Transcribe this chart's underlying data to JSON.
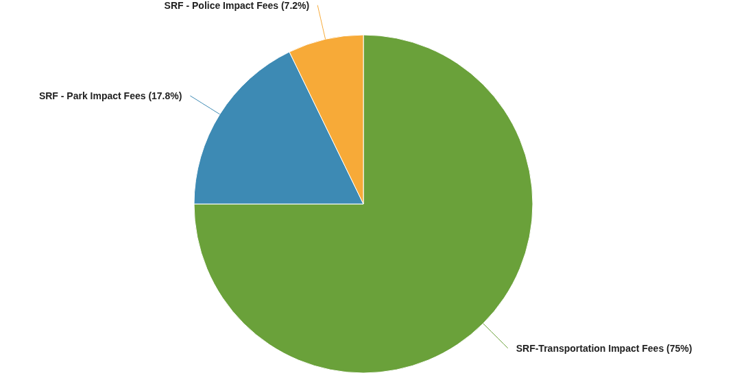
{
  "chart_data": {
    "type": "pie",
    "categories": [
      "SRF-Transportation Impact Fees",
      "SRF - Park Impact Fees",
      "SRF - Police Impact Fees"
    ],
    "values": [
      75,
      17.8,
      7.2
    ],
    "value_labels": [
      "(75%)",
      "(17.8%)",
      "(7.2%)"
    ],
    "colors": [
      "#6aa13a",
      "#3d8ab4",
      "#f7aa38"
    ],
    "legend": false
  }
}
